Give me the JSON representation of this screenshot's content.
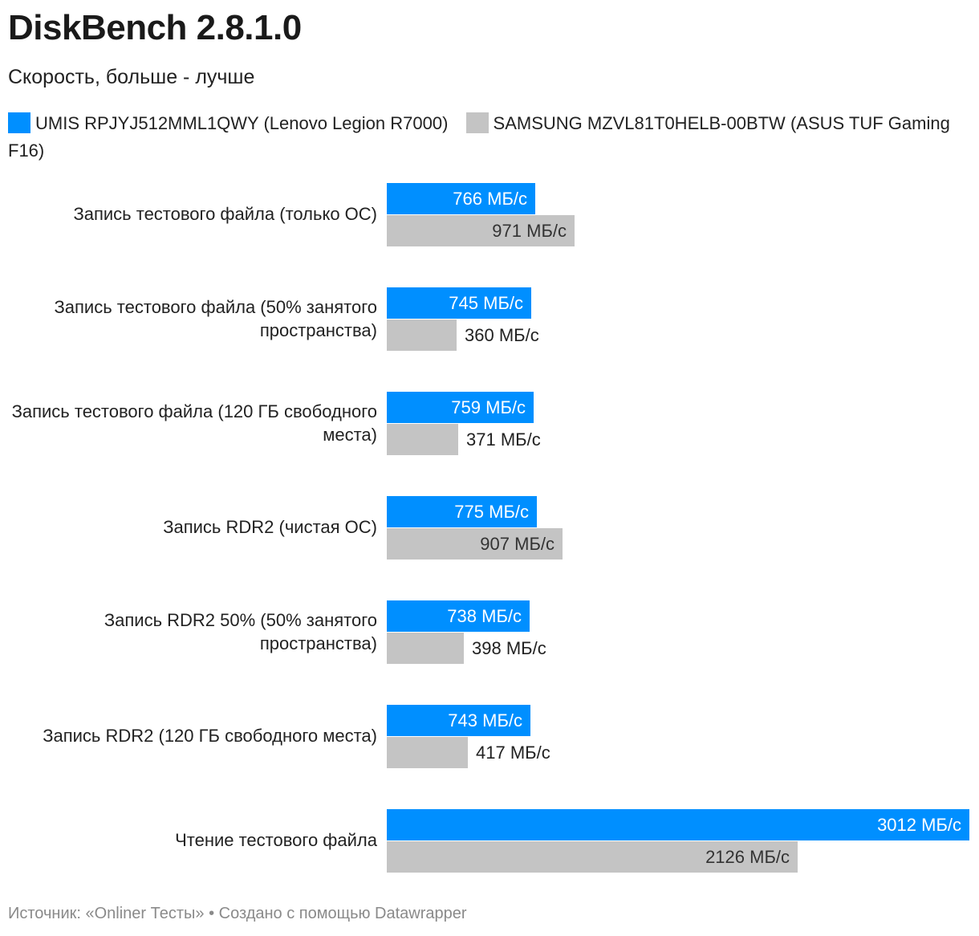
{
  "title": "DiskBench 2.8.1.0",
  "subtitle": "Скорость, больше - лучше",
  "colors": {
    "series1": "#008fff",
    "series2": "#c4c4c4"
  },
  "legend": [
    {
      "name": "UMIS RPJYJ512MML1QWY (Lenovo Legion R7000)",
      "color": "#008fff"
    },
    {
      "name": "SAMSUNG MZVL81T0HELB-00BTW (ASUS TUF Gaming F16)",
      "color": "#c4c4c4"
    }
  ],
  "footer": "Источник: «Onliner Тесты» • Создано с помощью Datawrapper",
  "chart_data": {
    "type": "bar",
    "orientation": "horizontal",
    "unit": "МБ/с",
    "xlim": [
      0,
      3012
    ],
    "categories": [
      "Запись тестового файла (только ОС)",
      "Запись тестового файла (50% занятого пространства)",
      "Запись тестового файла (120 ГБ свободного места)",
      "Запись RDR2 (чистая ОС)",
      "Запись RDR2 50% (50% занятого пространства)",
      "Запись RDR2 (120 ГБ свободного места)",
      "Чтение тестового файла"
    ],
    "series": [
      {
        "name": "UMIS RPJYJ512MML1QWY (Lenovo Legion R7000)",
        "values": [
          766,
          745,
          759,
          775,
          738,
          743,
          3012
        ],
        "labels": [
          "766 МБ/с",
          "745 МБ/с",
          "759 МБ/с",
          "775 МБ/с",
          "738 МБ/с",
          "743 МБ/с",
          "3012 МБ/с"
        ]
      },
      {
        "name": "SAMSUNG MZVL81T0HELB-00BTW (ASUS TUF Gaming F16)",
        "values": [
          971,
          360,
          371,
          907,
          398,
          417,
          2126
        ],
        "labels": [
          "971 МБ/с",
          "360 МБ/с",
          "371 МБ/с",
          "907 МБ/с",
          "398 МБ/с",
          "417 МБ/с",
          "2126 МБ/с"
        ]
      }
    ],
    "legend_position": "top"
  }
}
